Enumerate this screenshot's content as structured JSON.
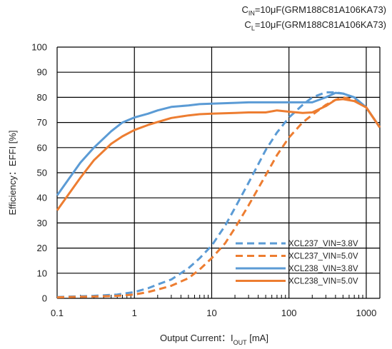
{
  "conditions": {
    "cin": {
      "sym": "C",
      "sub": "IN",
      "value": "=10μF(GRM188C81A106KA73)"
    },
    "cl": {
      "sym": "C",
      "sub": "L",
      "value": "=10μF(GRM188C81A106KA73)"
    }
  },
  "chart_data": {
    "type": "line",
    "title": "",
    "xlabel": {
      "main": "Output Current：I",
      "sub": "OUT",
      "unit": " [mA]"
    },
    "ylabel": "Efficiency：EFFI  [%]",
    "xscale": "log",
    "xlim": [
      0.1,
      1500
    ],
    "ylim": [
      0,
      100
    ],
    "xticks": [
      0.1,
      1,
      10,
      100,
      1000
    ],
    "xtick_labels": [
      "0.1",
      "1",
      "10",
      "100",
      "1000"
    ],
    "yticks": [
      0,
      10,
      20,
      30,
      40,
      50,
      60,
      70,
      80,
      90,
      100
    ],
    "ytick_labels": [
      "0",
      "10",
      "20",
      "30",
      "40",
      "50",
      "60",
      "70",
      "80",
      "90",
      "100"
    ],
    "grid": true,
    "legend_position": "bottom-right",
    "series": [
      {
        "name": "XCL237_VIN=3.8V",
        "color": "#5b9bd5",
        "dash": true,
        "x": [
          0.1,
          0.3,
          0.6,
          1,
          1.5,
          2,
          3,
          5,
          7,
          10,
          15,
          20,
          30,
          50,
          70,
          100,
          150,
          200,
          300,
          400,
          500,
          700,
          1000,
          1500
        ],
        "y": [
          0.5,
          1,
          1.5,
          2.5,
          4,
          5.5,
          7.5,
          12,
          16,
          21,
          29,
          36,
          46,
          59,
          66,
          72,
          77,
          80,
          82,
          82,
          81.5,
          80,
          76,
          68
        ]
      },
      {
        "name": "XCL237_VIN=5.0V",
        "color": "#ed7d31",
        "dash": true,
        "x": [
          0.1,
          0.3,
          0.6,
          1,
          1.5,
          2,
          3,
          5,
          7,
          10,
          15,
          20,
          30,
          50,
          70,
          100,
          150,
          200,
          300,
          400,
          500,
          700,
          1000,
          1500
        ],
        "y": [
          0.4,
          0.7,
          1,
          1.5,
          2.5,
          3.5,
          5,
          8,
          11.5,
          16,
          22,
          28,
          37,
          49,
          57,
          64,
          70,
          73,
          77,
          79,
          80,
          79,
          76,
          68
        ]
      },
      {
        "name": "XCL238_VIN=3.8V",
        "color": "#5b9bd5",
        "dash": false,
        "x": [
          0.1,
          0.2,
          0.3,
          0.5,
          0.7,
          1,
          1.5,
          2,
          3,
          5,
          7,
          10,
          20,
          30,
          50,
          100,
          200,
          300,
          400,
          500,
          700,
          1000,
          1500
        ],
        "y": [
          41,
          54,
          60,
          66.5,
          70,
          72,
          73.5,
          74.8,
          76.2,
          76.8,
          77.3,
          77.5,
          77.8,
          78,
          78,
          78,
          78,
          80,
          81.8,
          81.5,
          80,
          76,
          68
        ]
      },
      {
        "name": "XCL238_VIN=5.0V",
        "color": "#ed7d31",
        "dash": false,
        "x": [
          0.1,
          0.2,
          0.3,
          0.5,
          0.7,
          1,
          1.5,
          2,
          3,
          5,
          7,
          10,
          20,
          30,
          50,
          70,
          100,
          150,
          200,
          300,
          400,
          500,
          700,
          1000,
          1500
        ],
        "y": [
          35,
          48,
          55,
          61.5,
          64.5,
          67,
          69,
          70.2,
          71.8,
          72.8,
          73.3,
          73.5,
          73.8,
          74,
          74,
          74.8,
          74.3,
          73.8,
          74,
          76.5,
          79,
          79.3,
          78.5,
          76,
          68
        ]
      }
    ]
  }
}
